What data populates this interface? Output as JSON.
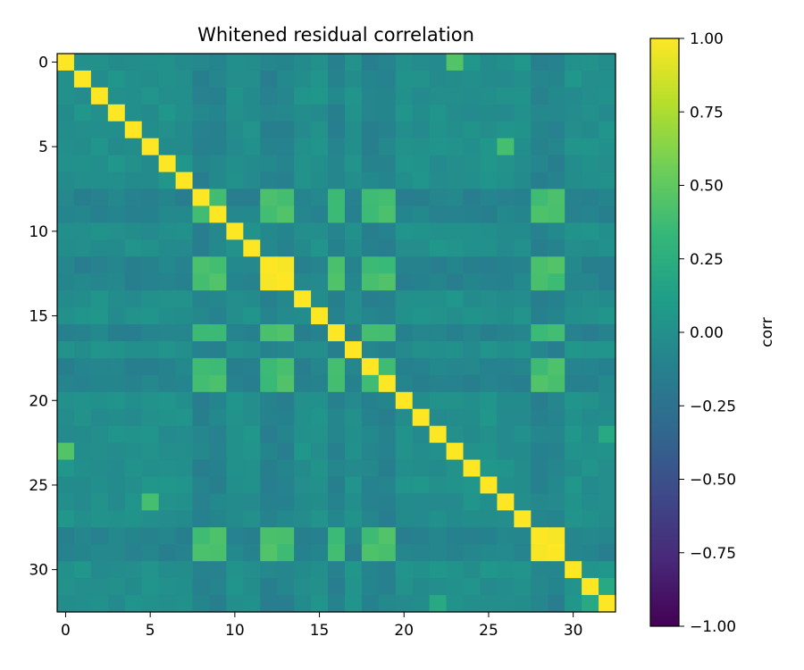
{
  "chart_data": {
    "type": "heatmap",
    "title": "Whitened residual correlation",
    "colorbar_label": "corr",
    "colormap": "viridis",
    "vmin": -1.0,
    "vmax": 1.0,
    "n": 33,
    "x_ticks": [
      0,
      5,
      10,
      15,
      20,
      25,
      30
    ],
    "y_ticks": [
      0,
      5,
      10,
      15,
      20,
      25,
      30
    ],
    "colorbar_ticks": [
      1.0,
      0.75,
      0.5,
      0.25,
      0.0,
      -0.25,
      -0.5,
      -0.75,
      -1.0
    ],
    "colorbar_tick_labels": [
      "1.00",
      "0.75",
      "0.50",
      "0.25",
      "0.00",
      "−0.25",
      "−0.50",
      "−0.75",
      "−1.00"
    ],
    "group_a": [
      8,
      9,
      12,
      13,
      16,
      18,
      19,
      28,
      29
    ],
    "group_b": [
      0,
      1,
      2,
      3,
      4,
      5,
      6,
      7,
      10,
      11,
      14,
      15,
      17,
      20,
      21,
      22,
      23,
      24,
      25,
      26,
      27,
      30,
      31,
      32
    ],
    "corr_within_group_a": 0.4,
    "corr_between_groups": -0.1,
    "corr_within_group_b": 0.0,
    "notable_pairs": [
      {
        "i": 0,
        "j": 23,
        "value": 0.45
      },
      {
        "i": 5,
        "j": 26,
        "value": 0.4
      },
      {
        "i": 12,
        "j": 13,
        "value": 0.98
      },
      {
        "i": 28,
        "j": 29,
        "value": 0.98
      },
      {
        "i": 31,
        "j": 32,
        "value": 0.2
      },
      {
        "i": 22,
        "j": 32,
        "value": 0.2
      }
    ],
    "diagonal": 1.0
  }
}
